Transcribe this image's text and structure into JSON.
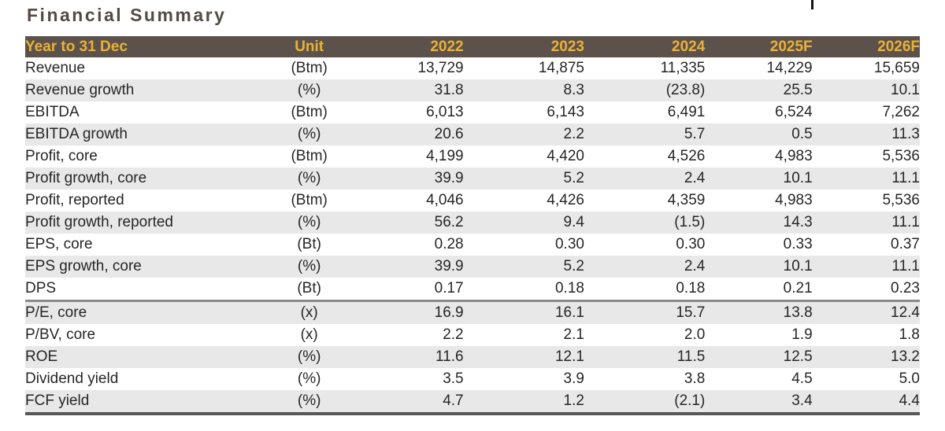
{
  "title": "Financial Summary",
  "colors": {
    "header_bg": "#5d524b",
    "header_text": "#eab136",
    "title_text": "#544b44",
    "row_shade": "#e8e8e8",
    "divider": "#8a8a8a",
    "bottom_border": "#585858"
  },
  "table": {
    "columns": [
      "Year to 31 Dec",
      "Unit",
      "2022",
      "2023",
      "2024",
      "2025F",
      "2026F"
    ],
    "sections": [
      {
        "rows": [
          {
            "label": "Revenue",
            "unit": "(Btm)",
            "values": [
              "13,729",
              "14,875",
              "11,335",
              "14,229",
              "15,659"
            ]
          },
          {
            "label": "Revenue growth",
            "unit": "(%)",
            "values": [
              "31.8",
              "8.3",
              "(23.8)",
              "25.5",
              "10.1"
            ]
          },
          {
            "label": "EBITDA",
            "unit": "(Btm)",
            "values": [
              "6,013",
              "6,143",
              "6,491",
              "6,524",
              "7,262"
            ]
          },
          {
            "label": "EBITDA growth",
            "unit": "(%)",
            "values": [
              "20.6",
              "2.2",
              "5.7",
              "0.5",
              "11.3"
            ]
          },
          {
            "label": "Profit, core",
            "unit": "(Btm)",
            "values": [
              "4,199",
              "4,420",
              "4,526",
              "4,983",
              "5,536"
            ]
          },
          {
            "label": "Profit growth, core",
            "unit": "(%)",
            "values": [
              "39.9",
              "5.2",
              "2.4",
              "10.1",
              "11.1"
            ]
          },
          {
            "label": "Profit, reported",
            "unit": "(Btm)",
            "values": [
              "4,046",
              "4,426",
              "4,359",
              "4,983",
              "5,536"
            ]
          },
          {
            "label": "Profit growth, reported",
            "unit": "(%)",
            "values": [
              "56.2",
              "9.4",
              "(1.5)",
              "14.3",
              "11.1"
            ]
          },
          {
            "label": "EPS, core",
            "unit": "(Bt)",
            "values": [
              "0.28",
              "0.30",
              "0.30",
              "0.33",
              "0.37"
            ]
          },
          {
            "label": "EPS growth, core",
            "unit": "(%)",
            "values": [
              "39.9",
              "5.2",
              "2.4",
              "10.1",
              "11.1"
            ]
          },
          {
            "label": "DPS",
            "unit": "(Bt)",
            "values": [
              "0.17",
              "0.18",
              "0.18",
              "0.21",
              "0.23"
            ]
          }
        ]
      },
      {
        "rows": [
          {
            "label": "P/E, core",
            "unit": "(x)",
            "values": [
              "16.9",
              "16.1",
              "15.7",
              "13.8",
              "12.4"
            ]
          },
          {
            "label": "P/BV, core",
            "unit": "(x)",
            "values": [
              "2.2",
              "2.1",
              "2.0",
              "1.9",
              "1.8"
            ]
          },
          {
            "label": "ROE",
            "unit": "(%)",
            "values": [
              "11.6",
              "12.1",
              "11.5",
              "12.5",
              "13.2"
            ]
          },
          {
            "label": "Dividend yield",
            "unit": "(%)",
            "values": [
              "3.5",
              "3.9",
              "3.8",
              "4.5",
              "5.0"
            ]
          },
          {
            "label": "FCF yield",
            "unit": "(%)",
            "values": [
              "4.7",
              "1.2",
              "(2.1)",
              "3.4",
              "4.4"
            ]
          }
        ]
      }
    ]
  }
}
